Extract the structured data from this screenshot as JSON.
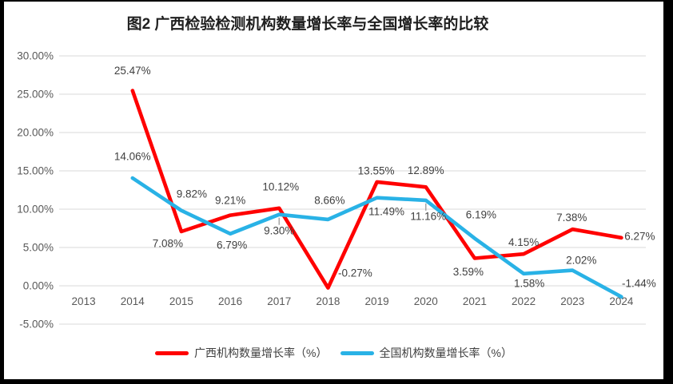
{
  "chart_data": {
    "type": "line",
    "title": "图2 广西检验检测机构数量增长率与全国增长率的比较",
    "categories": [
      "2013",
      "2014",
      "2015",
      "2016",
      "2017",
      "2018",
      "2019",
      "2020",
      "2021",
      "2022",
      "2023",
      "2024"
    ],
    "y_axis": {
      "min": -5,
      "max": 30,
      "step": 5,
      "tick_labels": [
        "30.00%",
        "25.00%",
        "20.00%",
        "15.00%",
        "10.00%",
        "5.00%",
        "0.00%",
        "-5.00%"
      ]
    },
    "grid": true,
    "legend_position": "bottom",
    "label_format": "0.00%",
    "series": [
      {
        "name": "广西机构数量增长率（%）",
        "color": "#FF0000",
        "values": [
          null,
          25.47,
          7.08,
          9.21,
          10.12,
          -0.27,
          13.55,
          12.89,
          3.59,
          4.15,
          7.38,
          6.27
        ],
        "label_offsets": [
          null,
          [
            0,
            -25
          ],
          [
            -17,
            15
          ],
          [
            0,
            -19
          ],
          [
            2,
            -27
          ],
          [
            34,
            -19
          ],
          [
            -1,
            -14
          ],
          [
            0,
            -21
          ],
          [
            -8,
            17
          ],
          [
            0,
            -15
          ],
          [
            -1,
            -15
          ],
          [
            23,
            -2
          ]
        ]
      },
      {
        "name": "全国机构数量增长率（%）",
        "color": "#29B2E6",
        "values": [
          null,
          14.06,
          9.82,
          6.79,
          9.3,
          8.66,
          11.49,
          11.16,
          6.19,
          1.58,
          2.02,
          -1.44
        ],
        "label_offsets": [
          null,
          [
            0,
            -27
          ],
          [
            13,
            -21
          ],
          [
            2,
            14
          ],
          [
            0,
            20
          ],
          [
            2,
            -24
          ],
          [
            12,
            17
          ],
          [
            3,
            20
          ],
          [
            8,
            -30
          ],
          [
            7,
            12
          ],
          [
            11,
            -13
          ],
          [
            22,
            -17
          ]
        ]
      }
    ],
    "label_leader_lines": [
      {
        "series": 1,
        "category_index": 4
      },
      {
        "series": 1,
        "category_index": 7
      }
    ]
  },
  "colors": {
    "gridline": "#D9D9D9",
    "axis_text": "#595959",
    "data_label_text": "#404040",
    "leader_line": "#A6A6A6",
    "title_text": "#1F1F1F",
    "frame": "#000000"
  }
}
